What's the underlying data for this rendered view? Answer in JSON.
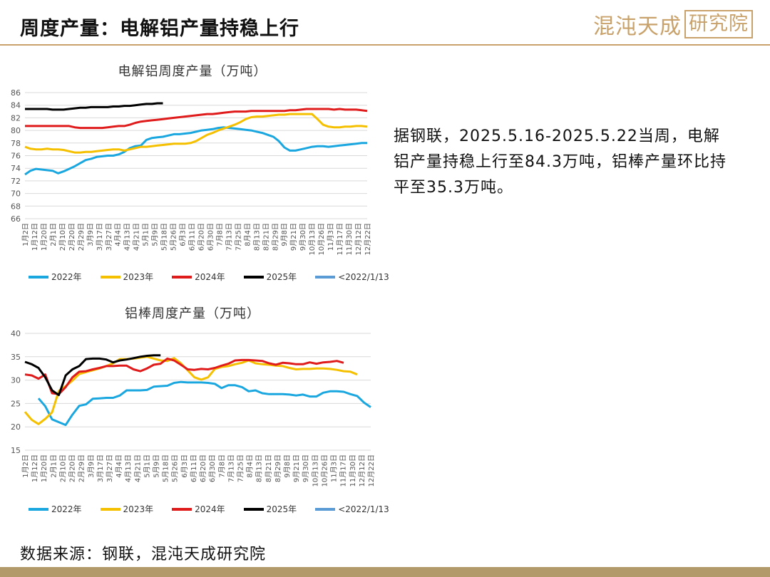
{
  "header": {
    "title": "周度产量：电解铝产量持稳上行",
    "logo_text": "混沌天成",
    "logo_boxed_text": "研究院"
  },
  "commentary": "据钢联，2025.5.16-2025.5.22当周，电解铝产量持稳上行至84.3万吨，铝棒产量环比持平至35.3万吨。",
  "source": "数据来源：钢联，混沌天成研究院",
  "colors": {
    "s2022": "#1aa7e0",
    "s2023": "#f5c000",
    "s2024": "#e01b1b",
    "s2025": "#000000",
    "sPre": "#5b9bd5",
    "grid": "#d9d9d9",
    "accent": "#c9a26b"
  },
  "chart_data": [
    {
      "type": "line",
      "title": "电解铝周度产量（万吨）",
      "ylim": [
        66,
        86
      ],
      "yticks": [
        66,
        68,
        70,
        72,
        74,
        76,
        78,
        80,
        82,
        84,
        86
      ],
      "grid": true,
      "legend_position": "bottom",
      "x_tick_labels": [
        "1月2日",
        "1月12日",
        "1月20日",
        "2月1日",
        "2月10日",
        "2月20日",
        "2月29日",
        "3月9日",
        "3月17日",
        "3月27日",
        "4月4日",
        "4月13日",
        "4月21日",
        "5月1日",
        "5月9日",
        "5月18日",
        "5月26日",
        "6月3日",
        "6月11日",
        "6月20日",
        "6月30日",
        "7月8日",
        "7月13日",
        "7月25日",
        "8月4日",
        "8月13日",
        "8月21日",
        "8月29日",
        "9月8日",
        "9月21日",
        "9月30日",
        "10月13日",
        "10月26日",
        "11月3日",
        "11月17日",
        "11月30日",
        "12月12日",
        "12月22日"
      ],
      "series": [
        {
          "name": "2022年",
          "color_key": "s2022",
          "values": [
            73.0,
            73.6,
            73.9,
            73.8,
            73.7,
            73.6,
            73.2,
            73.5,
            73.9,
            74.3,
            74.8,
            75.3,
            75.5,
            75.8,
            75.9,
            76.0,
            76.0,
            76.2,
            76.6,
            77.2,
            77.5,
            77.6,
            78.5,
            78.8,
            78.9,
            79.0,
            79.2,
            79.4,
            79.4,
            79.5,
            79.6,
            79.8,
            80.0,
            80.1,
            80.2,
            80.4,
            80.5,
            80.4,
            80.3,
            80.2,
            80.1,
            80.0,
            79.8,
            79.6,
            79.3,
            79.0,
            78.3,
            77.3,
            76.8,
            76.8,
            77.0,
            77.2,
            77.4,
            77.5,
            77.5,
            77.4,
            77.5,
            77.6,
            77.7,
            77.8,
            77.9,
            78.0,
            78.0
          ]
        },
        {
          "name": "2023年",
          "color_key": "s2023",
          "values": [
            77.4,
            77.1,
            77.0,
            77.0,
            77.1,
            77.0,
            77.0,
            76.9,
            76.7,
            76.5,
            76.5,
            76.6,
            76.6,
            76.7,
            76.8,
            76.9,
            77.0,
            77.0,
            76.8,
            77.0,
            77.2,
            77.4,
            77.4,
            77.5,
            77.6,
            77.7,
            77.8,
            77.9,
            77.9,
            77.9,
            78.0,
            78.3,
            78.8,
            79.3,
            79.6,
            80.0,
            80.3,
            80.6,
            80.9,
            81.3,
            81.8,
            82.1,
            82.2,
            82.2,
            82.3,
            82.4,
            82.5,
            82.5,
            82.6,
            82.6,
            82.6,
            82.6,
            82.6,
            81.8,
            80.9,
            80.6,
            80.5,
            80.5,
            80.6,
            80.6,
            80.7,
            80.7,
            80.6
          ]
        },
        {
          "name": "2024年",
          "color_key": "s2024",
          "values": [
            80.7,
            80.7,
            80.7,
            80.7,
            80.7,
            80.7,
            80.7,
            80.7,
            80.7,
            80.5,
            80.4,
            80.4,
            80.4,
            80.4,
            80.4,
            80.5,
            80.6,
            80.7,
            80.7,
            80.9,
            81.2,
            81.4,
            81.5,
            81.6,
            81.7,
            81.8,
            81.9,
            82.0,
            82.1,
            82.2,
            82.3,
            82.4,
            82.5,
            82.6,
            82.6,
            82.7,
            82.8,
            82.9,
            83.0,
            83.0,
            83.0,
            83.1,
            83.1,
            83.1,
            83.1,
            83.1,
            83.1,
            83.1,
            83.2,
            83.2,
            83.3,
            83.4,
            83.4,
            83.4,
            83.4,
            83.4,
            83.3,
            83.4,
            83.3,
            83.3,
            83.3,
            83.2,
            83.1
          ]
        },
        {
          "name": "2025年",
          "color_key": "s2025",
          "values": [
            83.4,
            83.4,
            83.4,
            83.4,
            83.4,
            83.3,
            83.3,
            83.3,
            83.4,
            83.5,
            83.6,
            83.6,
            83.7,
            83.7,
            83.7,
            83.7,
            83.8,
            83.8,
            83.9,
            83.9,
            84.0,
            84.1,
            84.2,
            84.2,
            84.3,
            84.3
          ]
        },
        {
          "name": "<2022/1/13",
          "color_key": "sPre",
          "values": []
        }
      ]
    },
    {
      "type": "line",
      "title": "铝棒周度产量（万吨）",
      "ylim": [
        15,
        40
      ],
      "yticks": [
        15,
        20,
        25,
        30,
        35,
        40
      ],
      "grid": true,
      "legend_position": "bottom",
      "x_tick_labels": [
        "1月2日",
        "1月12日",
        "1月20日",
        "2月1日",
        "2月10日",
        "2月20日",
        "2月29日",
        "3月9日",
        "3月17日",
        "3月27日",
        "4月4日",
        "4月13日",
        "4月21日",
        "5月1日",
        "5月9日",
        "5月18日",
        "5月26日",
        "6月3日",
        "6月11日",
        "6月20日",
        "6月30日",
        "7月8日",
        "7月13日",
        "7月25日",
        "8月4日",
        "8月13日",
        "8月21日",
        "8月29日",
        "9月8日",
        "9月21日",
        "9月30日",
        "10月13日",
        "10月26日",
        "11月3日",
        "11月17日",
        "11月30日",
        "12月12日",
        "12月22日"
      ],
      "series": [
        {
          "name": "2022年",
          "color_key": "s2022",
          "values": [
            null,
            null,
            26.1,
            24.4,
            21.6,
            21.0,
            20.4,
            22.6,
            24.5,
            24.8,
            26.0,
            26.1,
            26.2,
            26.2,
            26.7,
            27.8,
            27.8,
            27.8,
            27.9,
            28.6,
            28.7,
            28.8,
            29.4,
            29.6,
            29.5,
            29.5,
            29.5,
            29.4,
            29.2,
            28.3,
            28.9,
            28.9,
            28.5,
            27.6,
            27.8,
            27.2,
            27.0,
            27.0,
            27.0,
            26.9,
            26.7,
            26.9,
            26.5,
            26.5,
            27.3,
            27.6,
            27.6,
            27.5,
            27.0,
            26.6,
            25.2,
            24.2
          ]
        },
        {
          "name": "2023年",
          "color_key": "s2023",
          "values": [
            23.2,
            21.5,
            20.6,
            21.7,
            23.1,
            27.7,
            28.7,
            29.9,
            31.3,
            31.7,
            32.1,
            32.5,
            33.0,
            33.6,
            34.5,
            34.5,
            34.6,
            34.8,
            35.0,
            34.6,
            34.2,
            34.1,
            34.7,
            33.6,
            32.1,
            30.6,
            30.1,
            30.6,
            32.4,
            32.8,
            33.0,
            33.4,
            33.7,
            34.2,
            33.6,
            33.4,
            33.3,
            33.1,
            33.0,
            32.6,
            32.3,
            32.4,
            32.4,
            32.5,
            32.5,
            32.4,
            32.2,
            31.9,
            31.8,
            31.2
          ]
        },
        {
          "name": "2024年",
          "color_key": "s2024",
          "values": [
            31.2,
            31.0,
            30.3,
            31.2,
            27.2,
            27.0,
            28.5,
            30.6,
            31.8,
            31.9,
            32.3,
            32.6,
            33.0,
            33.0,
            33.1,
            33.1,
            32.3,
            31.9,
            32.5,
            33.3,
            33.5,
            34.6,
            34.2,
            33.3,
            32.3,
            32.2,
            32.4,
            32.3,
            32.6,
            33.1,
            33.5,
            34.2,
            34.3,
            34.3,
            34.2,
            34.1,
            33.6,
            33.3,
            33.7,
            33.6,
            33.4,
            33.4,
            33.8,
            33.5,
            33.8,
            33.9,
            34.1,
            33.7
          ]
        },
        {
          "name": "2025年",
          "color_key": "s2025",
          "values": [
            33.9,
            33.4,
            32.6,
            30.6,
            27.8,
            26.8,
            31.0,
            32.3,
            33.0,
            34.5,
            34.6,
            34.6,
            34.4,
            33.8,
            34.2,
            34.4,
            34.7,
            35.0,
            35.2,
            35.3,
            35.3
          ]
        },
        {
          "name": "<2022/1/13",
          "color_key": "sPre",
          "values": []
        }
      ]
    }
  ]
}
